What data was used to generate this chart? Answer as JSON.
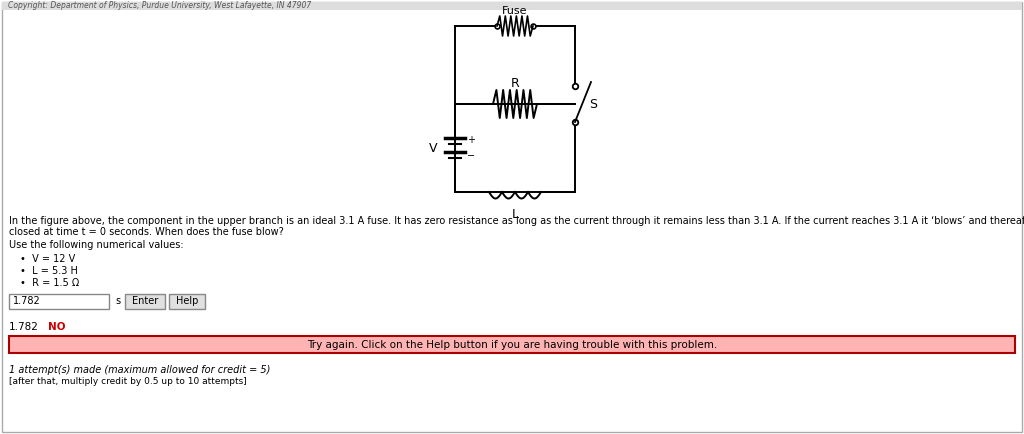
{
  "bg_color": "#ffffff",
  "border_color": "#aaaaaa",
  "fuse_label": "Fuse",
  "R_label": "R",
  "L_label": "L",
  "V_label": "V",
  "S_label": "S",
  "problem_text_line1": "In the figure above, the component in the upper branch is an ideal 3.1 A fuse. It has zero resistance as long as the current through it remains less than 3.1 A. If the current reaches 3.1 A it ‘blows’ and thereafter has infinite resistance. Switch S is",
  "problem_text_line2": "closed at time t = 0 seconds. When does the fuse blow?",
  "use_values_label": "Use the following numerical values:",
  "bullet1": "V = 12 V",
  "bullet2": "L = 5.3 H",
  "bullet3": "R = 1.5 Ω",
  "answer_value": "1.782",
  "answer_unit": "s",
  "answer_result": "NO",
  "try_again_text": "Try again. Click on the Help button if you are having trouble with this problem.",
  "attempts_text": "1 attempt(s) made (maximum allowed for credit = 5)",
  "after_text": "[after that, multiply credit by 0.5 up to 10 attempts]",
  "enter_btn": "Enter",
  "help_btn": "Help",
  "pink_bg": "#ffb3b3",
  "red_border": "#aa0000",
  "text_color": "#000000",
  "red_text": "#cc0000",
  "copyright_text": "Copyright: Department of Physics, Purdue University, West Lafayette, IN 47907"
}
